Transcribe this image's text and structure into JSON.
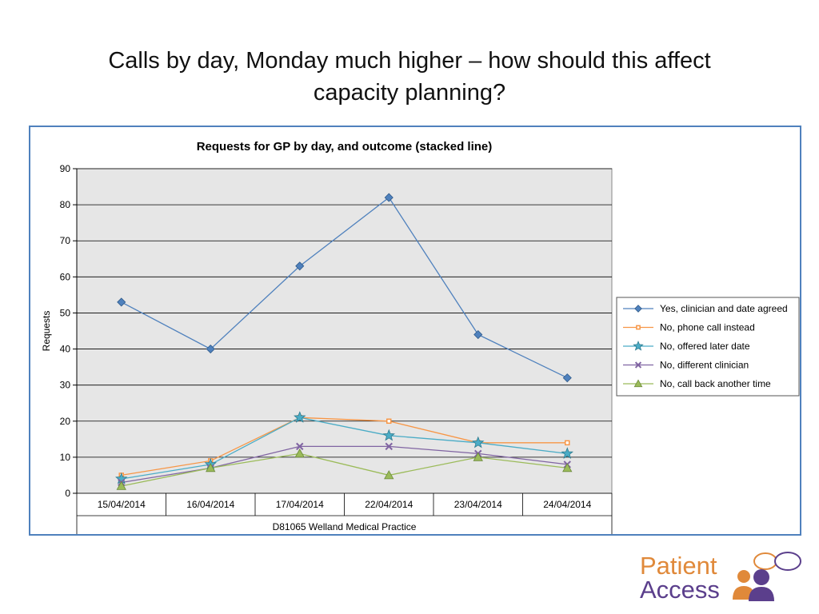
{
  "slide": {
    "title_line1": "Calls by day, Monday much higher – how should this affect",
    "title_line2": "capacity planning?"
  },
  "chart_data": {
    "type": "line",
    "title": "Requests for GP by day, and outcome (stacked line)",
    "ylabel": "Requests",
    "xlabel": "D81065 Welland Medical Practice",
    "ylim": [
      0,
      90
    ],
    "yticks": [
      0,
      10,
      20,
      30,
      40,
      50,
      60,
      70,
      80,
      90
    ],
    "grid": true,
    "legend_position": "right",
    "categories": [
      "15/04/2014",
      "16/04/2014",
      "17/04/2014",
      "22/04/2014",
      "23/04/2014",
      "24/04/2014"
    ],
    "series": [
      {
        "name": "Yes, clinician and date agreed",
        "color": "#4f81bd",
        "marker": "diamond",
        "values": [
          53,
          40,
          63,
          82,
          44,
          32
        ]
      },
      {
        "name": "No, phone call instead",
        "color": "#f79646",
        "marker": "square",
        "values": [
          5,
          9,
          21,
          20,
          14,
          14
        ]
      },
      {
        "name": "No, offered later date",
        "color": "#4bacc6",
        "marker": "star",
        "values": [
          4,
          8,
          21,
          16,
          14,
          11
        ]
      },
      {
        "name": "No, different clinician",
        "color": "#8064a2",
        "marker": "x",
        "values": [
          3,
          7,
          13,
          13,
          11,
          8
        ]
      },
      {
        "name": "No, call back another time",
        "color": "#9bbb59",
        "marker": "triangle",
        "values": [
          2,
          7,
          11,
          5,
          10,
          7
        ]
      }
    ]
  },
  "logo": {
    "word1": "Patient",
    "word2": "Access",
    "color1": "#e0893a",
    "color2": "#5b3f8c"
  }
}
